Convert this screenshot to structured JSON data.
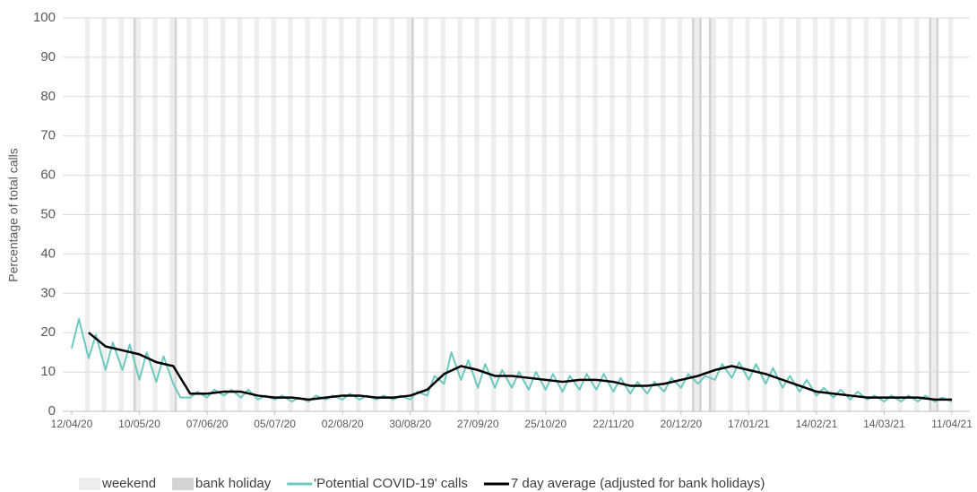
{
  "chart_data": {
    "type": "line",
    "ylabel": "Percentage of total calls",
    "xlim": [
      "12/04/20",
      "11/04/21"
    ],
    "xticks": [
      "12/04/20",
      "10/05/20",
      "07/06/20",
      "05/07/20",
      "02/08/20",
      "30/08/20",
      "27/09/20",
      "25/10/20",
      "22/11/20",
      "20/12/20",
      "17/01/21",
      "14/02/21",
      "14/03/21",
      "11/04/21"
    ],
    "ylim": [
      0,
      100
    ],
    "yticks": [
      0,
      10,
      20,
      30,
      40,
      50,
      60,
      70,
      80,
      90,
      100
    ],
    "grid": true,
    "legend": "bottom",
    "bands": [
      {
        "name": "weekend",
        "color": "#eeeeee"
      },
      {
        "name": "bank holiday",
        "color": "#d4d4d4",
        "dates": [
          "08/05/20",
          "25/05/20",
          "31/08/20",
          "25/12/20",
          "28/12/20",
          "01/01/21",
          "02/04/21",
          "05/04/21"
        ]
      }
    ],
    "series": [
      {
        "name": "'Potential COVID-19' calls",
        "color": "#6cc9c0",
        "x": [
          "12/04/20",
          "15/04/20",
          "19/04/20",
          "22/04/20",
          "26/04/20",
          "29/04/20",
          "03/05/20",
          "06/05/20",
          "10/05/20",
          "13/05/20",
          "17/05/20",
          "20/05/20",
          "24/05/20",
          "27/05/20",
          "31/05/20",
          "03/06/20",
          "07/06/20",
          "10/06/20",
          "14/06/20",
          "17/06/20",
          "21/06/20",
          "24/06/20",
          "28/06/20",
          "01/07/20",
          "05/07/20",
          "08/07/20",
          "12/07/20",
          "15/07/20",
          "19/07/20",
          "22/07/20",
          "26/07/20",
          "29/07/20",
          "02/08/20",
          "05/08/20",
          "09/08/20",
          "12/08/20",
          "16/08/20",
          "19/08/20",
          "23/08/20",
          "26/08/20",
          "30/08/20",
          "02/09/20",
          "06/09/20",
          "09/09/20",
          "13/09/20",
          "16/09/20",
          "20/09/20",
          "23/09/20",
          "27/09/20",
          "30/09/20",
          "04/10/20",
          "07/10/20",
          "11/10/20",
          "14/10/20",
          "18/10/20",
          "21/10/20",
          "25/10/20",
          "28/10/20",
          "01/11/20",
          "04/11/20",
          "08/11/20",
          "11/11/20",
          "15/11/20",
          "18/11/20",
          "22/11/20",
          "25/11/20",
          "29/11/20",
          "02/12/20",
          "06/12/20",
          "09/12/20",
          "13/12/20",
          "16/12/20",
          "20/12/20",
          "23/12/20",
          "27/12/20",
          "30/12/20",
          "03/01/21",
          "06/01/21",
          "10/01/21",
          "13/01/21",
          "17/01/21",
          "20/01/21",
          "24/01/21",
          "27/01/21",
          "31/01/21",
          "03/02/21",
          "07/02/21",
          "10/02/21",
          "14/02/21",
          "17/02/21",
          "21/02/21",
          "24/02/21",
          "28/02/21",
          "03/03/21",
          "07/03/21",
          "10/03/21",
          "14/03/21",
          "17/03/21",
          "21/03/21",
          "24/03/21",
          "28/03/21",
          "31/03/21",
          "04/04/21",
          "07/04/21",
          "11/04/21"
        ],
        "values": [
          16,
          23.5,
          13.5,
          19.5,
          10.5,
          17.5,
          10.5,
          17,
          8,
          15,
          7.5,
          14,
          7,
          3.5,
          3.5,
          5,
          3.5,
          5.5,
          4,
          5.5,
          3.5,
          5.5,
          3,
          4,
          3,
          4,
          2.5,
          3.5,
          2.5,
          4,
          3,
          4,
          3,
          4.5,
          3,
          4,
          3,
          4,
          3,
          4,
          3,
          5,
          4,
          9,
          7,
          15,
          8,
          13,
          6,
          12,
          6,
          10.5,
          6,
          10,
          5.5,
          10,
          5.5,
          9.5,
          5,
          9,
          5.5,
          9.5,
          5.5,
          9.5,
          5,
          8.5,
          4.5,
          7.5,
          4.5,
          7.5,
          5,
          8.5,
          6,
          9.5,
          7,
          9,
          8,
          12,
          8.5,
          12.5,
          8,
          12,
          7,
          11,
          6,
          9,
          5,
          8,
          4,
          6,
          3.5,
          5.5,
          3,
          5,
          3,
          4,
          2.5,
          4,
          2.5,
          4,
          2.5,
          4,
          2.5,
          3.5,
          2.5
        ]
      },
      {
        "name": "7 day average (adjusted for bank holidays)",
        "color": "#000000",
        "x": [
          "19/04/20",
          "26/04/20",
          "03/05/20",
          "10/05/20",
          "17/05/20",
          "24/05/20",
          "31/05/20",
          "07/06/20",
          "14/06/20",
          "21/06/20",
          "28/06/20",
          "05/07/20",
          "12/07/20",
          "19/07/20",
          "26/07/20",
          "02/08/20",
          "09/08/20",
          "16/08/20",
          "23/08/20",
          "30/08/20",
          "06/09/20",
          "13/09/20",
          "20/09/20",
          "27/09/20",
          "04/10/20",
          "11/10/20",
          "18/10/20",
          "25/10/20",
          "01/11/20",
          "08/11/20",
          "15/11/20",
          "22/11/20",
          "29/11/20",
          "06/12/20",
          "13/12/20",
          "20/12/20",
          "27/12/20",
          "03/01/21",
          "10/01/21",
          "17/01/21",
          "24/01/21",
          "31/01/21",
          "07/02/21",
          "14/02/21",
          "21/02/21",
          "28/02/21",
          "07/03/21",
          "14/03/21",
          "21/03/21",
          "28/03/21",
          "04/04/21",
          "11/04/21"
        ],
        "values": [
          20,
          16.5,
          15.5,
          14.5,
          12.5,
          11.5,
          4.5,
          4.5,
          5,
          5,
          4,
          3.5,
          3.5,
          3,
          3.5,
          4,
          4,
          3.5,
          3.5,
          4,
          5.5,
          9.5,
          11.5,
          10.5,
          9,
          9,
          8.5,
          8,
          7.5,
          8,
          8,
          7.5,
          6.5,
          6.5,
          7,
          8,
          9,
          10.5,
          11.5,
          10.5,
          9.5,
          8,
          6.5,
          5,
          4.5,
          4,
          3.5,
          3.5,
          3.5,
          3.5,
          3,
          3
        ]
      }
    ]
  }
}
